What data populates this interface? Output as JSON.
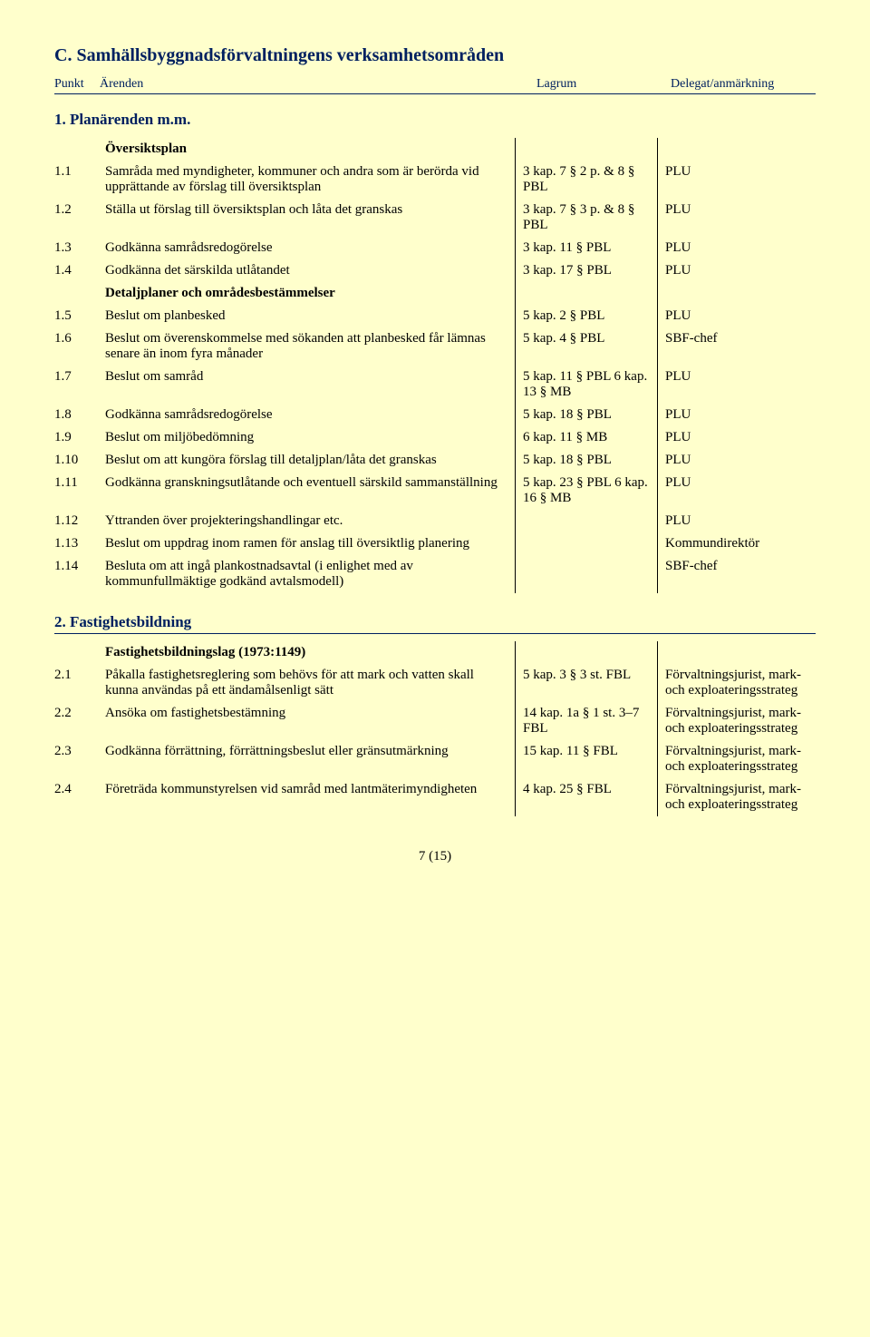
{
  "colors": {
    "background": "#ffffcc",
    "heading": "#002060",
    "text": "#000000",
    "rule": "#002060",
    "cell_border": "#000000"
  },
  "typography": {
    "body_family": "Times New Roman",
    "body_size_pt": 11,
    "section_title_size_pt": 15,
    "subsection_title_size_pt": 13
  },
  "section_title": "C. Samhällsbyggnadsförvaltningens verksamhetsområden",
  "header": {
    "punkt": "Punkt",
    "arenden": "Ärenden",
    "lagrum": "Lagrum",
    "delegat": "Delegat/anmärkning"
  },
  "sub1_title": "1. Planärenden m.m.",
  "group_oversiktsplan": "Översiktsplan",
  "rows_a": [
    {
      "punkt": "1.1",
      "arenden": "Samråda med myndigheter, kommuner och andra som är berörda vid upprättande av förslag till översiktsplan",
      "lagrum": "3 kap. 7 § 2 p. & 8 § PBL",
      "delegat": "PLU"
    },
    {
      "punkt": "1.2",
      "arenden": "Ställa ut förslag till översiktsplan och låta det granskas",
      "lagrum": "3 kap. 7 § 3 p. & 8 § PBL",
      "delegat": "PLU"
    },
    {
      "punkt": "1.3",
      "arenden": "Godkänna samrådsredogörelse",
      "lagrum": "3 kap. 11 § PBL",
      "delegat": "PLU"
    },
    {
      "punkt": "1.4",
      "arenden": "Godkänna det särskilda utlåtandet",
      "lagrum": "3 kap. 17 § PBL",
      "delegat": "PLU"
    }
  ],
  "group_detaljplaner": "Detaljplaner och områdesbestämmelser",
  "rows_b": [
    {
      "punkt": "1.5",
      "arenden": "Beslut om planbesked",
      "lagrum": "5 kap. 2 § PBL",
      "delegat": "PLU"
    },
    {
      "punkt": "1.6",
      "arenden": "Beslut om överenskommelse med sökanden att planbesked får lämnas senare än inom fyra månader",
      "lagrum": "5 kap. 4 § PBL",
      "delegat": "SBF-chef"
    },
    {
      "punkt": "1.7",
      "arenden": "Beslut om samråd",
      "lagrum": "5 kap. 11 § PBL 6 kap. 13 § MB",
      "delegat": "PLU"
    },
    {
      "punkt": "1.8",
      "arenden": "Godkänna samrådsredogörelse",
      "lagrum": "5 kap. 18 § PBL",
      "delegat": "PLU"
    },
    {
      "punkt": "1.9",
      "arenden": "Beslut om miljöbedömning",
      "lagrum": "6 kap. 11 § MB",
      "delegat": "PLU"
    },
    {
      "punkt": "1.10",
      "arenden": "Beslut om att kungöra förslag till detaljplan/låta det granskas",
      "lagrum": "5 kap. 18 § PBL",
      "delegat": "PLU"
    },
    {
      "punkt": "1.11",
      "arenden": "Godkänna granskningsutlåtande och eventuell särskild sammanställning",
      "lagrum": "5 kap. 23 § PBL 6 kap. 16 § MB",
      "delegat": "PLU"
    },
    {
      "punkt": "1.12",
      "arenden": "Yttranden över projekteringshandlingar etc.",
      "lagrum": "",
      "delegat": "PLU"
    },
    {
      "punkt": "1.13",
      "arenden": "Beslut om uppdrag inom ramen för anslag till översiktlig planering",
      "lagrum": "",
      "delegat": "Kommundirektör"
    },
    {
      "punkt": "1.14",
      "arenden": "Besluta om att ingå plankostnadsavtal (i enlighet med av kommunfullmäktige godkänd avtalsmodell)",
      "lagrum": "",
      "delegat": "SBF-chef"
    }
  ],
  "sub2_title": "2. Fastighetsbildning",
  "group_fastighet": "Fastighetsbildningslag (1973:1149)",
  "rows_c": [
    {
      "punkt": "2.1",
      "arenden": "Påkalla fastighetsreglering som behövs för att mark och vatten skall kunna användas på ett ändamålsenligt sätt",
      "lagrum": "5 kap. 3 § 3 st. FBL",
      "delegat": "Förvaltningsjurist, mark- och exploateringsstrateg"
    },
    {
      "punkt": "2.2",
      "arenden": "Ansöka om fastighetsbestämning",
      "lagrum": "14 kap. 1a § 1 st. 3–7 FBL",
      "delegat": "Förvaltningsjurist, mark- och exploateringsstrateg"
    },
    {
      "punkt": "2.3",
      "arenden": "Godkänna förrättning, förrättningsbeslut eller gränsutmärkning",
      "lagrum": "15 kap. 11 § FBL",
      "delegat": "Förvaltningsjurist, mark- och exploateringsstrateg"
    },
    {
      "punkt": "2.4",
      "arenden": "Företräda kommunstyrelsen vid samråd med lantmäterimyndigheten",
      "lagrum": "4 kap. 25 § FBL",
      "delegat": "Förvaltningsjurist, mark- och exploateringsstrateg"
    }
  ],
  "footer": "7 (15)"
}
